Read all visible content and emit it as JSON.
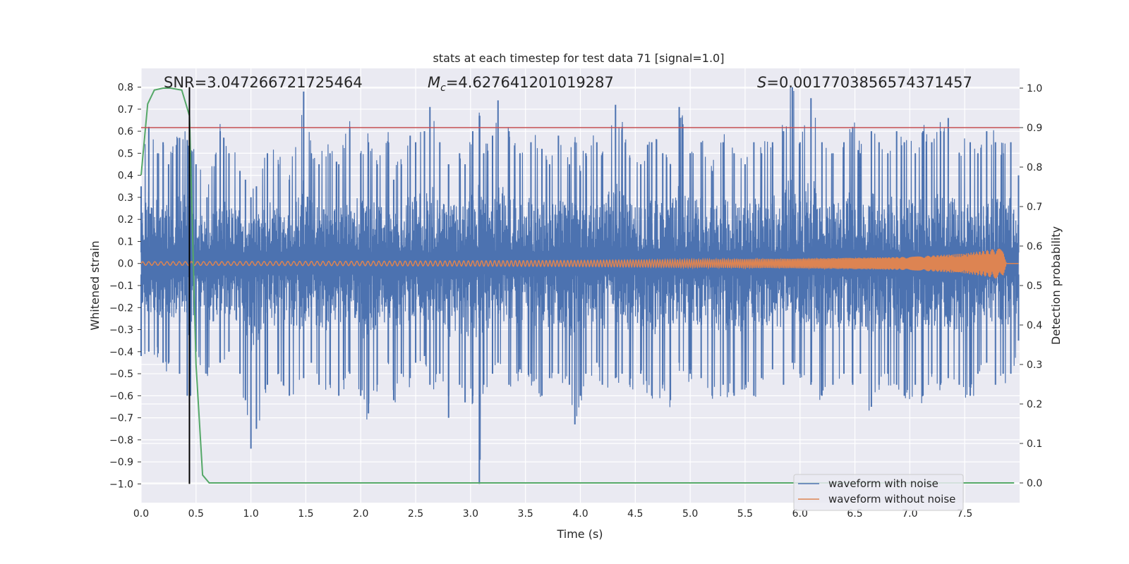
{
  "chart_data": {
    "type": "line",
    "title": "stats at each timestep for test data 71 [signal=1.0]",
    "xlabel": "Time (s)",
    "ylabel": "Whitened strain",
    "y2label": "Detection probability",
    "xlim": [
      0.0,
      8.0
    ],
    "ylim": [
      -1.085,
      0.885
    ],
    "y2lim": [
      -0.05,
      1.05
    ],
    "xticks": [
      "0.0",
      "0.5",
      "1.0",
      "1.5",
      "2.0",
      "2.5",
      "3.0",
      "3.5",
      "4.0",
      "4.5",
      "5.0",
      "5.5",
      "6.0",
      "6.5",
      "7.0",
      "7.5"
    ],
    "yticks": [
      "0.8",
      "0.7",
      "0.6",
      "0.5",
      "0.4",
      "0.3",
      "0.2",
      "0.1",
      "0.0",
      "−0.1",
      "−0.2",
      "−0.3",
      "−0.4",
      "−0.5",
      "−0.6",
      "−0.7",
      "−0.8",
      "−0.9",
      "−1.0"
    ],
    "y2ticks": [
      "1.0",
      "0.9",
      "0.8",
      "0.7",
      "0.6",
      "0.5",
      "0.4",
      "0.3",
      "0.2",
      "0.1",
      "0.0"
    ],
    "grid": true,
    "legend_position": "bottom-right",
    "annotations": {
      "snr": "SNR=3.047266721725464",
      "mc_symbol": "M",
      "mc_sub": "c",
      "mc_value": "=4.627641201019287",
      "s_symbol": "S",
      "s_value": "=0.0017703856574371457"
    },
    "series": [
      {
        "name": "waveform with noise",
        "color": "#4c72b0",
        "axis": "left",
        "envelope_peaks": [
          [
            0.0,
            0.35,
            -0.42
          ],
          [
            0.07,
            0.62,
            -0.4
          ],
          [
            0.15,
            0.5,
            -0.38
          ],
          [
            0.2,
            0.55,
            -0.45
          ],
          [
            0.25,
            0.45,
            -0.45
          ],
          [
            0.35,
            0.57,
            -0.5
          ],
          [
            0.42,
            0.56,
            -0.6
          ],
          [
            0.45,
            0.5,
            -0.6
          ],
          [
            0.5,
            0.45,
            -0.4
          ],
          [
            0.6,
            0.3,
            -0.5
          ],
          [
            0.72,
            0.6,
            -0.45
          ],
          [
            0.8,
            0.5,
            -0.4
          ],
          [
            0.9,
            0.42,
            -0.5
          ],
          [
            0.95,
            0.38,
            -0.62
          ],
          [
            1.0,
            0.3,
            -0.84
          ],
          [
            1.05,
            0.35,
            -0.75
          ],
          [
            1.15,
            0.5,
            -0.55
          ],
          [
            1.25,
            0.45,
            -0.5
          ],
          [
            1.35,
            0.38,
            -0.6
          ],
          [
            1.48,
            0.78,
            -0.52
          ],
          [
            1.55,
            0.5,
            -0.45
          ],
          [
            1.62,
            0.45,
            -0.55
          ],
          [
            1.72,
            0.5,
            -0.55
          ],
          [
            1.8,
            0.45,
            -0.6
          ],
          [
            1.9,
            0.62,
            -0.5
          ],
          [
            2.0,
            0.5,
            -0.6
          ],
          [
            2.07,
            0.55,
            -0.68
          ],
          [
            2.15,
            0.45,
            -0.55
          ],
          [
            2.25,
            0.55,
            -0.45
          ],
          [
            2.3,
            0.38,
            -0.62
          ],
          [
            2.37,
            0.45,
            -0.5
          ],
          [
            2.45,
            0.58,
            -0.52
          ],
          [
            2.5,
            0.55,
            -0.45
          ],
          [
            2.58,
            0.6,
            -0.42
          ],
          [
            2.63,
            0.71,
            -0.55
          ],
          [
            2.72,
            0.55,
            -0.5
          ],
          [
            2.8,
            0.45,
            -0.6
          ],
          [
            2.8,
            0.45,
            -0.7
          ],
          [
            2.9,
            0.5,
            -0.55
          ],
          [
            2.95,
            0.45,
            -0.63
          ],
          [
            3.02,
            0.6,
            -0.6
          ],
          [
            3.08,
            0.67,
            -1.0
          ],
          [
            3.12,
            0.5,
            -0.55
          ],
          [
            3.2,
            0.58,
            -0.5
          ],
          [
            3.25,
            0.74,
            -0.45
          ],
          [
            3.35,
            0.6,
            -0.55
          ],
          [
            3.45,
            0.5,
            -0.48
          ],
          [
            3.55,
            0.55,
            -0.5
          ],
          [
            3.65,
            0.52,
            -0.6
          ],
          [
            3.72,
            0.45,
            -0.52
          ],
          [
            3.8,
            0.58,
            -0.5
          ],
          [
            3.9,
            0.45,
            -0.55
          ],
          [
            3.95,
            0.55,
            -0.73
          ],
          [
            4.0,
            0.42,
            -0.6
          ],
          [
            4.05,
            0.5,
            -0.5
          ],
          [
            4.15,
            0.55,
            -0.45
          ],
          [
            4.2,
            0.5,
            -0.55
          ],
          [
            4.32,
            0.72,
            -0.52
          ],
          [
            4.38,
            0.62,
            -0.5
          ],
          [
            4.45,
            0.48,
            -0.55
          ],
          [
            4.55,
            0.45,
            -0.5
          ],
          [
            4.65,
            0.55,
            -0.6
          ],
          [
            4.75,
            0.5,
            -0.55
          ],
          [
            4.82,
            0.45,
            -0.62
          ],
          [
            4.9,
            0.71,
            -0.45
          ],
          [
            5.0,
            0.5,
            -0.5
          ],
          [
            5.1,
            0.55,
            -0.52
          ],
          [
            5.2,
            0.42,
            -0.6
          ],
          [
            5.3,
            0.55,
            -0.55
          ],
          [
            5.4,
            0.5,
            -0.6
          ],
          [
            5.5,
            0.45,
            -0.55
          ],
          [
            5.58,
            0.55,
            -0.6
          ],
          [
            5.65,
            0.5,
            -0.52
          ],
          [
            5.75,
            0.55,
            -0.48
          ],
          [
            5.85,
            0.6,
            -0.55
          ],
          [
            5.93,
            0.8,
            -0.45
          ],
          [
            6.0,
            0.55,
            -0.5
          ],
          [
            6.1,
            0.75,
            -0.55
          ],
          [
            6.2,
            0.55,
            -0.6
          ],
          [
            6.3,
            0.5,
            -0.55
          ],
          [
            6.4,
            0.55,
            -0.5
          ],
          [
            6.48,
            0.62,
            -0.55
          ],
          [
            6.55,
            0.5,
            -0.5
          ],
          [
            6.65,
            0.6,
            -0.65
          ],
          [
            6.72,
            0.55,
            -0.55
          ],
          [
            6.8,
            0.5,
            -0.5
          ],
          [
            6.88,
            0.6,
            -0.55
          ],
          [
            6.95,
            0.55,
            -0.6
          ],
          [
            7.05,
            0.5,
            -0.55
          ],
          [
            7.12,
            0.6,
            -0.6
          ],
          [
            7.2,
            0.55,
            -0.5
          ],
          [
            7.28,
            0.6,
            -0.55
          ],
          [
            7.35,
            0.66,
            -0.52
          ],
          [
            7.45,
            0.5,
            -0.55
          ],
          [
            7.55,
            0.55,
            -0.6
          ],
          [
            7.62,
            0.5,
            -0.5
          ],
          [
            7.7,
            0.6,
            -0.45
          ],
          [
            7.78,
            0.55,
            -0.55
          ],
          [
            7.85,
            0.5,
            -0.5
          ],
          [
            7.92,
            0.55,
            -0.5
          ],
          [
            7.99,
            0.4,
            -0.35
          ]
        ]
      },
      {
        "name": "waveform without noise",
        "color": "#dd8452",
        "axis": "left",
        "amplitude": [
          [
            0.0,
            0.008
          ],
          [
            2.0,
            0.01
          ],
          [
            4.0,
            0.014
          ],
          [
            6.0,
            0.022
          ],
          [
            7.0,
            0.03
          ],
          [
            7.5,
            0.045
          ],
          [
            7.7,
            0.06
          ],
          [
            7.8,
            0.07
          ],
          [
            7.85,
            0.06
          ],
          [
            7.88,
            0.0
          ],
          [
            8.0,
            0.0
          ]
        ]
      },
      {
        "name": "detection probability",
        "color": "#55a868",
        "axis": "right",
        "x": [
          0.0,
          0.06,
          0.12,
          0.2,
          0.27,
          0.37,
          0.44,
          0.5,
          0.56,
          0.62,
          7.95
        ],
        "y": [
          0.78,
          0.96,
          0.995,
          1.0,
          1.0,
          0.995,
          0.93,
          0.3,
          0.02,
          0.0,
          0.0
        ]
      }
    ],
    "threshold": {
      "y2": 0.9,
      "color": "#c44e52"
    },
    "marker_line": {
      "x": 0.44,
      "y_from": -1.0,
      "y_to": 0.8,
      "color": "#000000"
    }
  }
}
